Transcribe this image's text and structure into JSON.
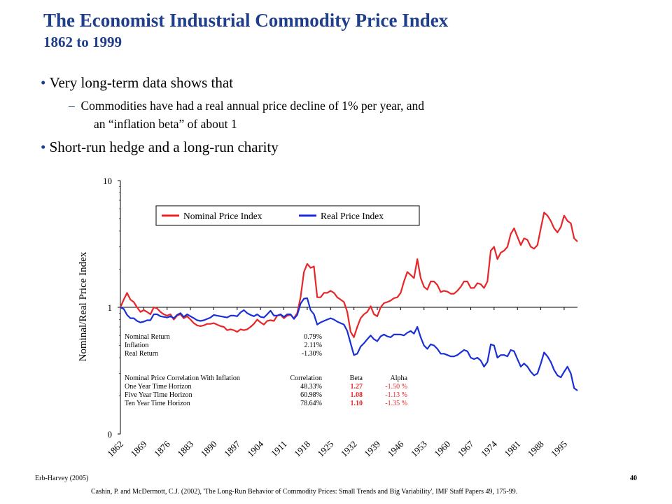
{
  "slide": {
    "title": "The Economist Industrial Commodity Price Index",
    "subtitle": "1862 to 1999",
    "bullets": [
      {
        "marker": "•",
        "text": "Very long-term data shows that"
      },
      {
        "marker": "–",
        "text": "Commodities have had a real annual price decline of 1% per year, and"
      },
      {
        "marker": "",
        "text": "an “inflation beta” of about 1"
      },
      {
        "marker": "•",
        "text": "Short-run hedge and a long-run charity"
      }
    ],
    "footer_left": "Erb-Harvey (2005)",
    "page_number": "40",
    "citation": "Cashin, P. and McDermott, C.J. (2002), 'The Long-Run Behavior of Commodity Prices: Small Trends and Big Variability', IMF Staff Papers 49, 175-99."
  },
  "chart_data": {
    "type": "line",
    "ylabel": "Nominal/Real Price Index",
    "xlabel": "",
    "y_scale": "log",
    "ylim_labels": [
      "0",
      "1",
      "10"
    ],
    "yticks": [
      {
        "value": 0.1,
        "label": "0"
      },
      {
        "value": 1,
        "label": "1"
      },
      {
        "value": 10,
        "label": "10"
      }
    ],
    "xlim": [
      1862,
      1999
    ],
    "xticks": [
      1862,
      1869,
      1876,
      1883,
      1890,
      1897,
      1904,
      1911,
      1918,
      1925,
      1932,
      1939,
      1946,
      1953,
      1960,
      1967,
      1974,
      1981,
      1988,
      1995
    ],
    "colors": {
      "nominal": "#e8262a",
      "real": "#1a2fd6"
    },
    "legend": {
      "position": "top",
      "entries": [
        "Nominal Price Index",
        "Real Price Index"
      ]
    },
    "series": [
      {
        "name": "Nominal Price Index",
        "color": "#e8262a",
        "points": [
          [
            1862,
            1.0
          ],
          [
            1863,
            1.15
          ],
          [
            1864,
            1.3
          ],
          [
            1865,
            1.15
          ],
          [
            1866,
            1.1
          ],
          [
            1867,
            1.0
          ],
          [
            1868,
            0.92
          ],
          [
            1869,
            0.95
          ],
          [
            1870,
            0.92
          ],
          [
            1871,
            0.88
          ],
          [
            1872,
            1.0
          ],
          [
            1873,
            0.98
          ],
          [
            1874,
            0.92
          ],
          [
            1875,
            0.88
          ],
          [
            1876,
            0.86
          ],
          [
            1877,
            0.88
          ],
          [
            1878,
            0.8
          ],
          [
            1879,
            0.86
          ],
          [
            1880,
            0.88
          ],
          [
            1881,
            0.82
          ],
          [
            1882,
            0.85
          ],
          [
            1883,
            0.8
          ],
          [
            1884,
            0.75
          ],
          [
            1885,
            0.72
          ],
          [
            1886,
            0.71
          ],
          [
            1887,
            0.72
          ],
          [
            1888,
            0.74
          ],
          [
            1889,
            0.74
          ],
          [
            1890,
            0.75
          ],
          [
            1891,
            0.73
          ],
          [
            1892,
            0.71
          ],
          [
            1893,
            0.7
          ],
          [
            1894,
            0.66
          ],
          [
            1895,
            0.67
          ],
          [
            1896,
            0.66
          ],
          [
            1897,
            0.64
          ],
          [
            1898,
            0.67
          ],
          [
            1899,
            0.66
          ],
          [
            1900,
            0.67
          ],
          [
            1901,
            0.7
          ],
          [
            1902,
            0.74
          ],
          [
            1903,
            0.8
          ],
          [
            1904,
            0.76
          ],
          [
            1905,
            0.73
          ],
          [
            1906,
            0.78
          ],
          [
            1907,
            0.79
          ],
          [
            1908,
            0.78
          ],
          [
            1909,
            0.86
          ],
          [
            1910,
            0.87
          ],
          [
            1911,
            0.82
          ],
          [
            1912,
            0.86
          ],
          [
            1913,
            0.87
          ],
          [
            1914,
            0.82
          ],
          [
            1915,
            0.9
          ],
          [
            1916,
            1.2
          ],
          [
            1917,
            1.9
          ],
          [
            1918,
            2.2
          ],
          [
            1919,
            2.05
          ],
          [
            1920,
            2.1
          ],
          [
            1921,
            1.2
          ],
          [
            1922,
            1.2
          ],
          [
            1923,
            1.3
          ],
          [
            1924,
            1.3
          ],
          [
            1925,
            1.35
          ],
          [
            1926,
            1.3
          ],
          [
            1927,
            1.2
          ],
          [
            1928,
            1.15
          ],
          [
            1929,
            1.1
          ],
          [
            1930,
            0.92
          ],
          [
            1931,
            0.64
          ],
          [
            1932,
            0.58
          ],
          [
            1933,
            0.7
          ],
          [
            1934,
            0.82
          ],
          [
            1935,
            0.88
          ],
          [
            1936,
            0.92
          ],
          [
            1937,
            1.02
          ],
          [
            1938,
            0.88
          ],
          [
            1939,
            0.85
          ],
          [
            1940,
            1.0
          ],
          [
            1941,
            1.08
          ],
          [
            1942,
            1.1
          ],
          [
            1943,
            1.13
          ],
          [
            1944,
            1.18
          ],
          [
            1945,
            1.2
          ],
          [
            1946,
            1.3
          ],
          [
            1947,
            1.6
          ],
          [
            1948,
            1.9
          ],
          [
            1949,
            1.8
          ],
          [
            1950,
            1.7
          ],
          [
            1951,
            2.4
          ],
          [
            1952,
            1.7
          ],
          [
            1953,
            1.45
          ],
          [
            1954,
            1.38
          ],
          [
            1955,
            1.6
          ],
          [
            1956,
            1.6
          ],
          [
            1957,
            1.5
          ],
          [
            1958,
            1.32
          ],
          [
            1959,
            1.35
          ],
          [
            1960,
            1.33
          ],
          [
            1961,
            1.28
          ],
          [
            1962,
            1.28
          ],
          [
            1963,
            1.35
          ],
          [
            1964,
            1.45
          ],
          [
            1965,
            1.6
          ],
          [
            1966,
            1.6
          ],
          [
            1967,
            1.42
          ],
          [
            1968,
            1.42
          ],
          [
            1969,
            1.55
          ],
          [
            1970,
            1.52
          ],
          [
            1971,
            1.42
          ],
          [
            1972,
            1.6
          ],
          [
            1973,
            2.8
          ],
          [
            1974,
            3.0
          ],
          [
            1975,
            2.4
          ],
          [
            1976,
            2.7
          ],
          [
            1977,
            2.8
          ],
          [
            1978,
            3.0
          ],
          [
            1979,
            3.8
          ],
          [
            1980,
            4.2
          ],
          [
            1981,
            3.6
          ],
          [
            1982,
            3.1
          ],
          [
            1983,
            3.5
          ],
          [
            1984,
            3.4
          ],
          [
            1985,
            3.0
          ],
          [
            1986,
            2.9
          ],
          [
            1987,
            3.1
          ],
          [
            1988,
            4.2
          ],
          [
            1989,
            5.6
          ],
          [
            1990,
            5.3
          ],
          [
            1991,
            4.8
          ],
          [
            1992,
            4.2
          ],
          [
            1993,
            3.9
          ],
          [
            1994,
            4.3
          ],
          [
            1995,
            5.3
          ],
          [
            1996,
            4.8
          ],
          [
            1997,
            4.6
          ],
          [
            1998,
            3.5
          ],
          [
            1999,
            3.3
          ]
        ]
      },
      {
        "name": "Real Price Index",
        "color": "#1a2fd6",
        "points": [
          [
            1862,
            1.0
          ],
          [
            1863,
            0.97
          ],
          [
            1864,
            0.87
          ],
          [
            1865,
            0.82
          ],
          [
            1866,
            0.82
          ],
          [
            1867,
            0.78
          ],
          [
            1868,
            0.76
          ],
          [
            1869,
            0.77
          ],
          [
            1870,
            0.79
          ],
          [
            1871,
            0.79
          ],
          [
            1872,
            0.88
          ],
          [
            1873,
            0.88
          ],
          [
            1874,
            0.85
          ],
          [
            1875,
            0.84
          ],
          [
            1876,
            0.83
          ],
          [
            1877,
            0.85
          ],
          [
            1878,
            0.82
          ],
          [
            1879,
            0.87
          ],
          [
            1880,
            0.9
          ],
          [
            1881,
            0.84
          ],
          [
            1882,
            0.88
          ],
          [
            1883,
            0.85
          ],
          [
            1884,
            0.82
          ],
          [
            1885,
            0.79
          ],
          [
            1886,
            0.78
          ],
          [
            1887,
            0.79
          ],
          [
            1888,
            0.81
          ],
          [
            1889,
            0.83
          ],
          [
            1890,
            0.87
          ],
          [
            1891,
            0.86
          ],
          [
            1892,
            0.85
          ],
          [
            1893,
            0.84
          ],
          [
            1894,
            0.83
          ],
          [
            1895,
            0.86
          ],
          [
            1896,
            0.86
          ],
          [
            1897,
            0.85
          ],
          [
            1898,
            0.91
          ],
          [
            1899,
            0.95
          ],
          [
            1900,
            0.9
          ],
          [
            1901,
            0.87
          ],
          [
            1902,
            0.85
          ],
          [
            1903,
            0.88
          ],
          [
            1904,
            0.84
          ],
          [
            1905,
            0.83
          ],
          [
            1906,
            0.88
          ],
          [
            1907,
            0.94
          ],
          [
            1908,
            0.86
          ],
          [
            1909,
            0.86
          ],
          [
            1910,
            0.88
          ],
          [
            1911,
            0.84
          ],
          [
            1912,
            0.88
          ],
          [
            1913,
            0.88
          ],
          [
            1914,
            0.81
          ],
          [
            1915,
            0.87
          ],
          [
            1916,
            1.07
          ],
          [
            1917,
            1.17
          ],
          [
            1918,
            1.18
          ],
          [
            1919,
            0.95
          ],
          [
            1920,
            0.88
          ],
          [
            1921,
            0.73
          ],
          [
            1922,
            0.76
          ],
          [
            1923,
            0.78
          ],
          [
            1924,
            0.8
          ],
          [
            1925,
            0.82
          ],
          [
            1926,
            0.8
          ],
          [
            1927,
            0.77
          ],
          [
            1928,
            0.75
          ],
          [
            1929,
            0.73
          ],
          [
            1930,
            0.65
          ],
          [
            1931,
            0.52
          ],
          [
            1932,
            0.42
          ],
          [
            1933,
            0.43
          ],
          [
            1934,
            0.49
          ],
          [
            1935,
            0.52
          ],
          [
            1936,
            0.56
          ],
          [
            1937,
            0.6
          ],
          [
            1938,
            0.56
          ],
          [
            1939,
            0.54
          ],
          [
            1940,
            0.59
          ],
          [
            1941,
            0.61
          ],
          [
            1942,
            0.59
          ],
          [
            1943,
            0.58
          ],
          [
            1944,
            0.61
          ],
          [
            1945,
            0.61
          ],
          [
            1946,
            0.61
          ],
          [
            1947,
            0.6
          ],
          [
            1948,
            0.63
          ],
          [
            1949,
            0.65
          ],
          [
            1950,
            0.62
          ],
          [
            1951,
            0.7
          ],
          [
            1952,
            0.58
          ],
          [
            1953,
            0.5
          ],
          [
            1954,
            0.47
          ],
          [
            1955,
            0.51
          ],
          [
            1956,
            0.5
          ],
          [
            1957,
            0.47
          ],
          [
            1958,
            0.43
          ],
          [
            1959,
            0.43
          ],
          [
            1960,
            0.42
          ],
          [
            1961,
            0.41
          ],
          [
            1962,
            0.41
          ],
          [
            1963,
            0.42
          ],
          [
            1964,
            0.44
          ],
          [
            1965,
            0.46
          ],
          [
            1966,
            0.45
          ],
          [
            1967,
            0.4
          ],
          [
            1968,
            0.39
          ],
          [
            1969,
            0.4
          ],
          [
            1970,
            0.38
          ],
          [
            1971,
            0.34
          ],
          [
            1972,
            0.37
          ],
          [
            1973,
            0.51
          ],
          [
            1974,
            0.5
          ],
          [
            1975,
            0.4
          ],
          [
            1976,
            0.42
          ],
          [
            1977,
            0.42
          ],
          [
            1978,
            0.41
          ],
          [
            1979,
            0.46
          ],
          [
            1980,
            0.45
          ],
          [
            1981,
            0.39
          ],
          [
            1982,
            0.34
          ],
          [
            1983,
            0.36
          ],
          [
            1984,
            0.34
          ],
          [
            1985,
            0.31
          ],
          [
            1986,
            0.29
          ],
          [
            1987,
            0.3
          ],
          [
            1988,
            0.36
          ],
          [
            1989,
            0.44
          ],
          [
            1990,
            0.41
          ],
          [
            1991,
            0.37
          ],
          [
            1992,
            0.32
          ],
          [
            1993,
            0.29
          ],
          [
            1994,
            0.28
          ],
          [
            1995,
            0.31
          ],
          [
            1996,
            0.34
          ],
          [
            1997,
            0.3
          ],
          [
            1998,
            0.23
          ],
          [
            1999,
            0.22
          ]
        ]
      }
    ],
    "stats_table": {
      "rows1": [
        {
          "label": "Nominal Return",
          "value": "0.79%"
        },
        {
          "label": "Inflation",
          "value": "2.11%"
        },
        {
          "label": "Real Return",
          "value": "-1.30%"
        }
      ],
      "header": {
        "label": "Nominal Price Correlation With Inflation",
        "correlation": "Correlation",
        "beta": "Beta",
        "alpha": "Alpha"
      },
      "rows2": [
        {
          "label": "One Year Time Horizon",
          "correlation": "48.33%",
          "beta": "1.27",
          "alpha": "-1.50 %"
        },
        {
          "label": "Five Year Time Horizon",
          "correlation": "60.98%",
          "beta": "1.08",
          "alpha": "-1.13 %"
        },
        {
          "label": "Ten Year Time Horizon",
          "correlation": "78.64%",
          "beta": "1.10",
          "alpha": "-1.35 %"
        }
      ],
      "highlight_color": "#e8262a"
    }
  }
}
